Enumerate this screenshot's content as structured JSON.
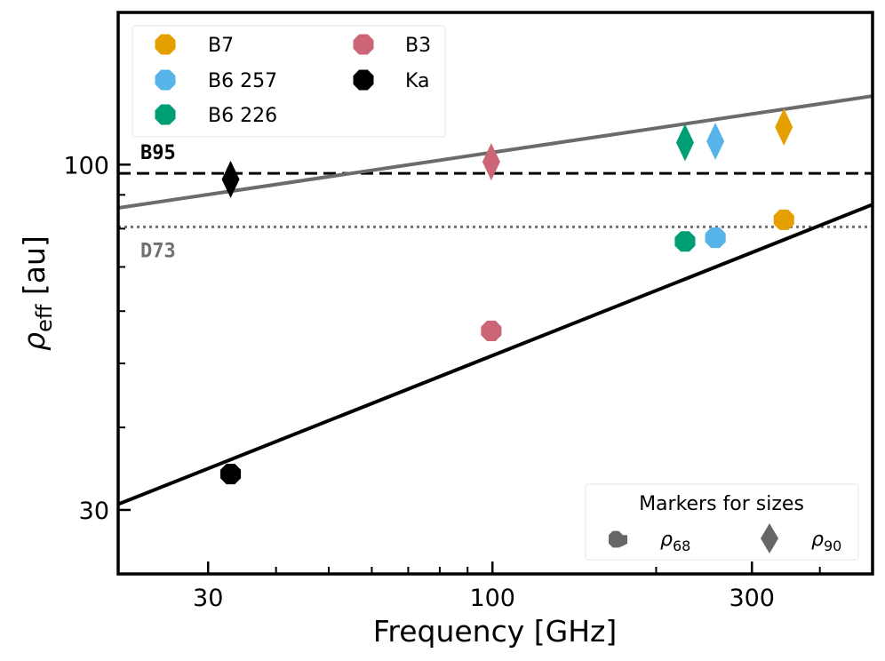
{
  "chart_data": {
    "type": "scatter",
    "xscale": "log",
    "yscale": "log",
    "xlim": [
      20.5,
      500
    ],
    "ylim": [
      24,
      170
    ],
    "xlabel": "Frequency [GHz]",
    "ylabel": "ρ",
    "ylabel_sub": "eff",
    "ylabel_unit": " [au]",
    "xticks": [
      30,
      100,
      300
    ],
    "xtick_labels": [
      "30",
      "100",
      "300"
    ],
    "xticks_minor": [
      40,
      50,
      60,
      70,
      80,
      90,
      200,
      400
    ],
    "yticks": [
      30,
      100
    ],
    "ytick_labels": [
      "30",
      "100"
    ],
    "yticks_minor": [
      40,
      50,
      60,
      70,
      80,
      90
    ],
    "reference_lines": [
      {
        "name": "B95",
        "value": 97,
        "style": "dashed",
        "color": "#000000"
      },
      {
        "name": "D73",
        "value": 80.5,
        "style": "dotted",
        "color": "#707070"
      }
    ],
    "fit_lines": [
      {
        "name": "rho90-fit",
        "color": "#6b6b6b",
        "points": [
          [
            20.5,
            86
          ],
          [
            500,
            127
          ]
        ]
      },
      {
        "name": "rho68-fit",
        "color": "#000000",
        "points": [
          [
            20.5,
            30.6
          ],
          [
            500,
            87
          ]
        ]
      }
    ],
    "series": [
      {
        "name": "B7",
        "color": "#E69F00",
        "freq": 343.5,
        "rho68": 82.5,
        "rho90": 114
      },
      {
        "name": "B6 257",
        "color": "#56B4E9",
        "freq": 257,
        "rho68": 77.5,
        "rho90": 108.5
      },
      {
        "name": "B6 226",
        "color": "#009E73",
        "freq": 226,
        "rho68": 76.5,
        "rho90": 108
      },
      {
        "name": "B3",
        "color": "#CC6677",
        "freq": 99.5,
        "rho68": 56,
        "rho90": 101
      },
      {
        "name": "Ka",
        "color": "#000000",
        "freq": 33,
        "rho68": 34,
        "rho90": 95
      }
    ],
    "legend": {
      "position": "top-left",
      "entries": [
        "B7",
        "B6 257",
        "B6 226",
        "B3",
        "Ka"
      ]
    },
    "marker_legend": {
      "position": "bottom-right",
      "title": "Markers for sizes",
      "entries": [
        {
          "symbol": "ρ",
          "sub": "68",
          "shape": "octagon"
        },
        {
          "symbol": "ρ",
          "sub": "90",
          "shape": "diamond"
        }
      ]
    }
  }
}
